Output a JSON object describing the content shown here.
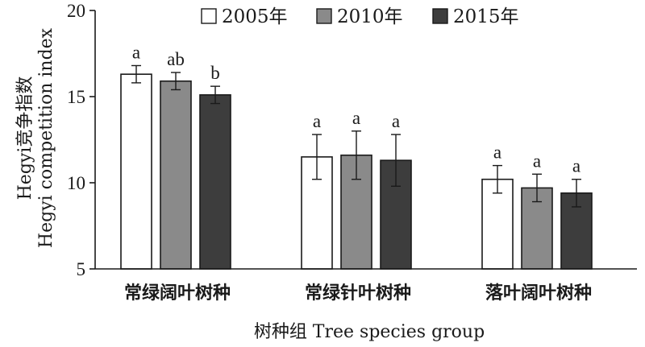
{
  "chart_data": {
    "type": "bar",
    "categories": [
      "常绿阔叶树种",
      "常绿针叶树种",
      "落叶阔叶树种"
    ],
    "series": [
      {
        "name": "2005年",
        "color": "#ffffff",
        "values": [
          16.3,
          11.5,
          10.2
        ],
        "errors": [
          0.5,
          1.3,
          0.8
        ],
        "significance": [
          "a",
          "a",
          "a"
        ]
      },
      {
        "name": "2010年",
        "color": "#8a8a8a",
        "values": [
          15.9,
          11.6,
          9.7
        ],
        "errors": [
          0.5,
          1.4,
          0.8
        ],
        "significance": [
          "ab",
          "a",
          "a"
        ]
      },
      {
        "name": "2015年",
        "color": "#3d3d3d",
        "values": [
          15.1,
          11.3,
          9.4
        ],
        "errors": [
          0.5,
          1.5,
          0.8
        ],
        "significance": [
          "b",
          "a",
          "a"
        ]
      }
    ],
    "ylim": [
      5,
      20
    ],
    "yticks": [
      5,
      10,
      15,
      20
    ],
    "ylabel": [
      "Hegyi竞争指数",
      "Hegyi competition index"
    ],
    "xlabel": "树种组 Tree species group",
    "legend": "top",
    "grid": false
  }
}
